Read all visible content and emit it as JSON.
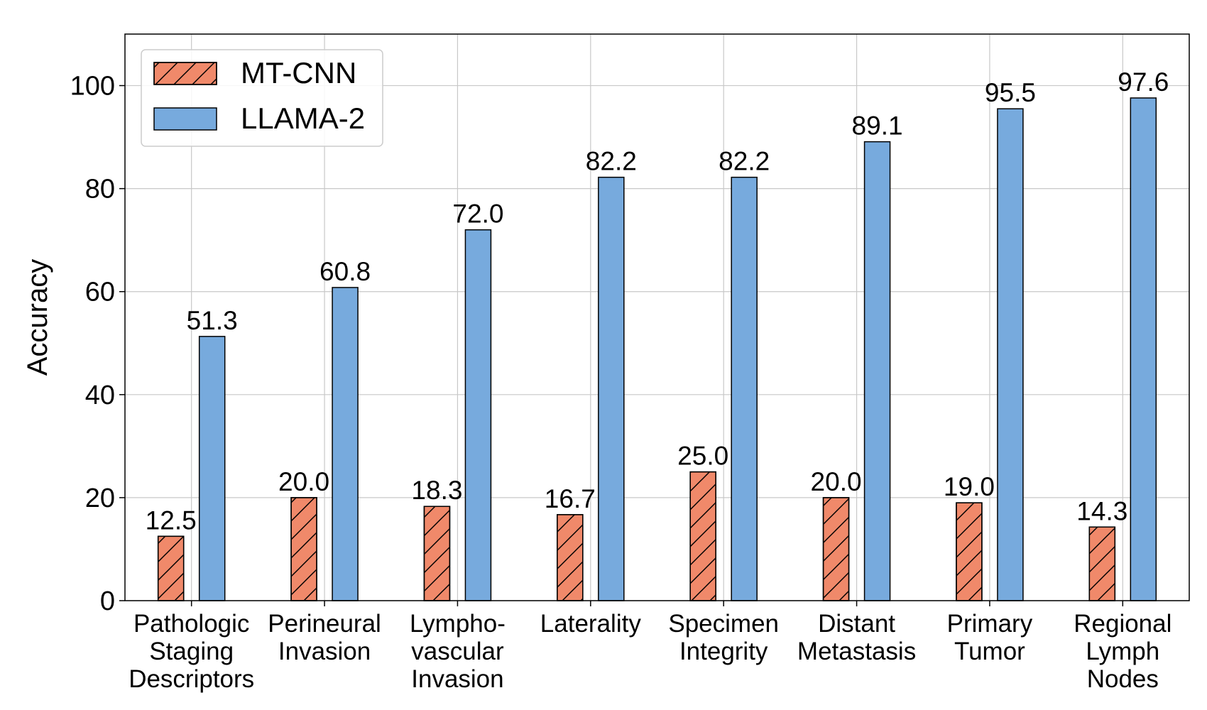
{
  "chart_data": {
    "type": "bar",
    "ylabel": "Accuracy",
    "ylim": [
      0,
      110
    ],
    "yticks": [
      0,
      20,
      40,
      60,
      80,
      100
    ],
    "grid": true,
    "legend_position": "top-left",
    "categories": [
      [
        "Pathologic",
        "Staging",
        "Descriptors"
      ],
      [
        "Perineural",
        "Invasion"
      ],
      [
        "Lympho-",
        "vascular",
        "Invasion"
      ],
      [
        "Laterality"
      ],
      [
        "Specimen",
        "Integrity"
      ],
      [
        "Distant",
        "Metastasis"
      ],
      [
        "Primary",
        "Tumor"
      ],
      [
        "Regional",
        "Lymph",
        "Nodes"
      ]
    ],
    "series": [
      {
        "name": "MT-CNN",
        "color": "#f0896a",
        "pattern": "hatch",
        "values": [
          12.5,
          20.0,
          18.3,
          16.7,
          25.0,
          20.0,
          19.0,
          14.3
        ],
        "labels": [
          "12.5",
          "20.0",
          "18.3",
          "16.7",
          "25.0",
          "20.0",
          "19.0",
          "14.3"
        ]
      },
      {
        "name": "LLAMA-2",
        "color": "#77aadd",
        "pattern": "solid",
        "values": [
          51.3,
          60.8,
          72.0,
          82.2,
          82.2,
          89.1,
          95.5,
          97.6
        ],
        "labels": [
          "51.3",
          "60.8",
          "72.0",
          "82.2",
          "82.2",
          "89.1",
          "95.5",
          "97.6"
        ]
      }
    ]
  }
}
